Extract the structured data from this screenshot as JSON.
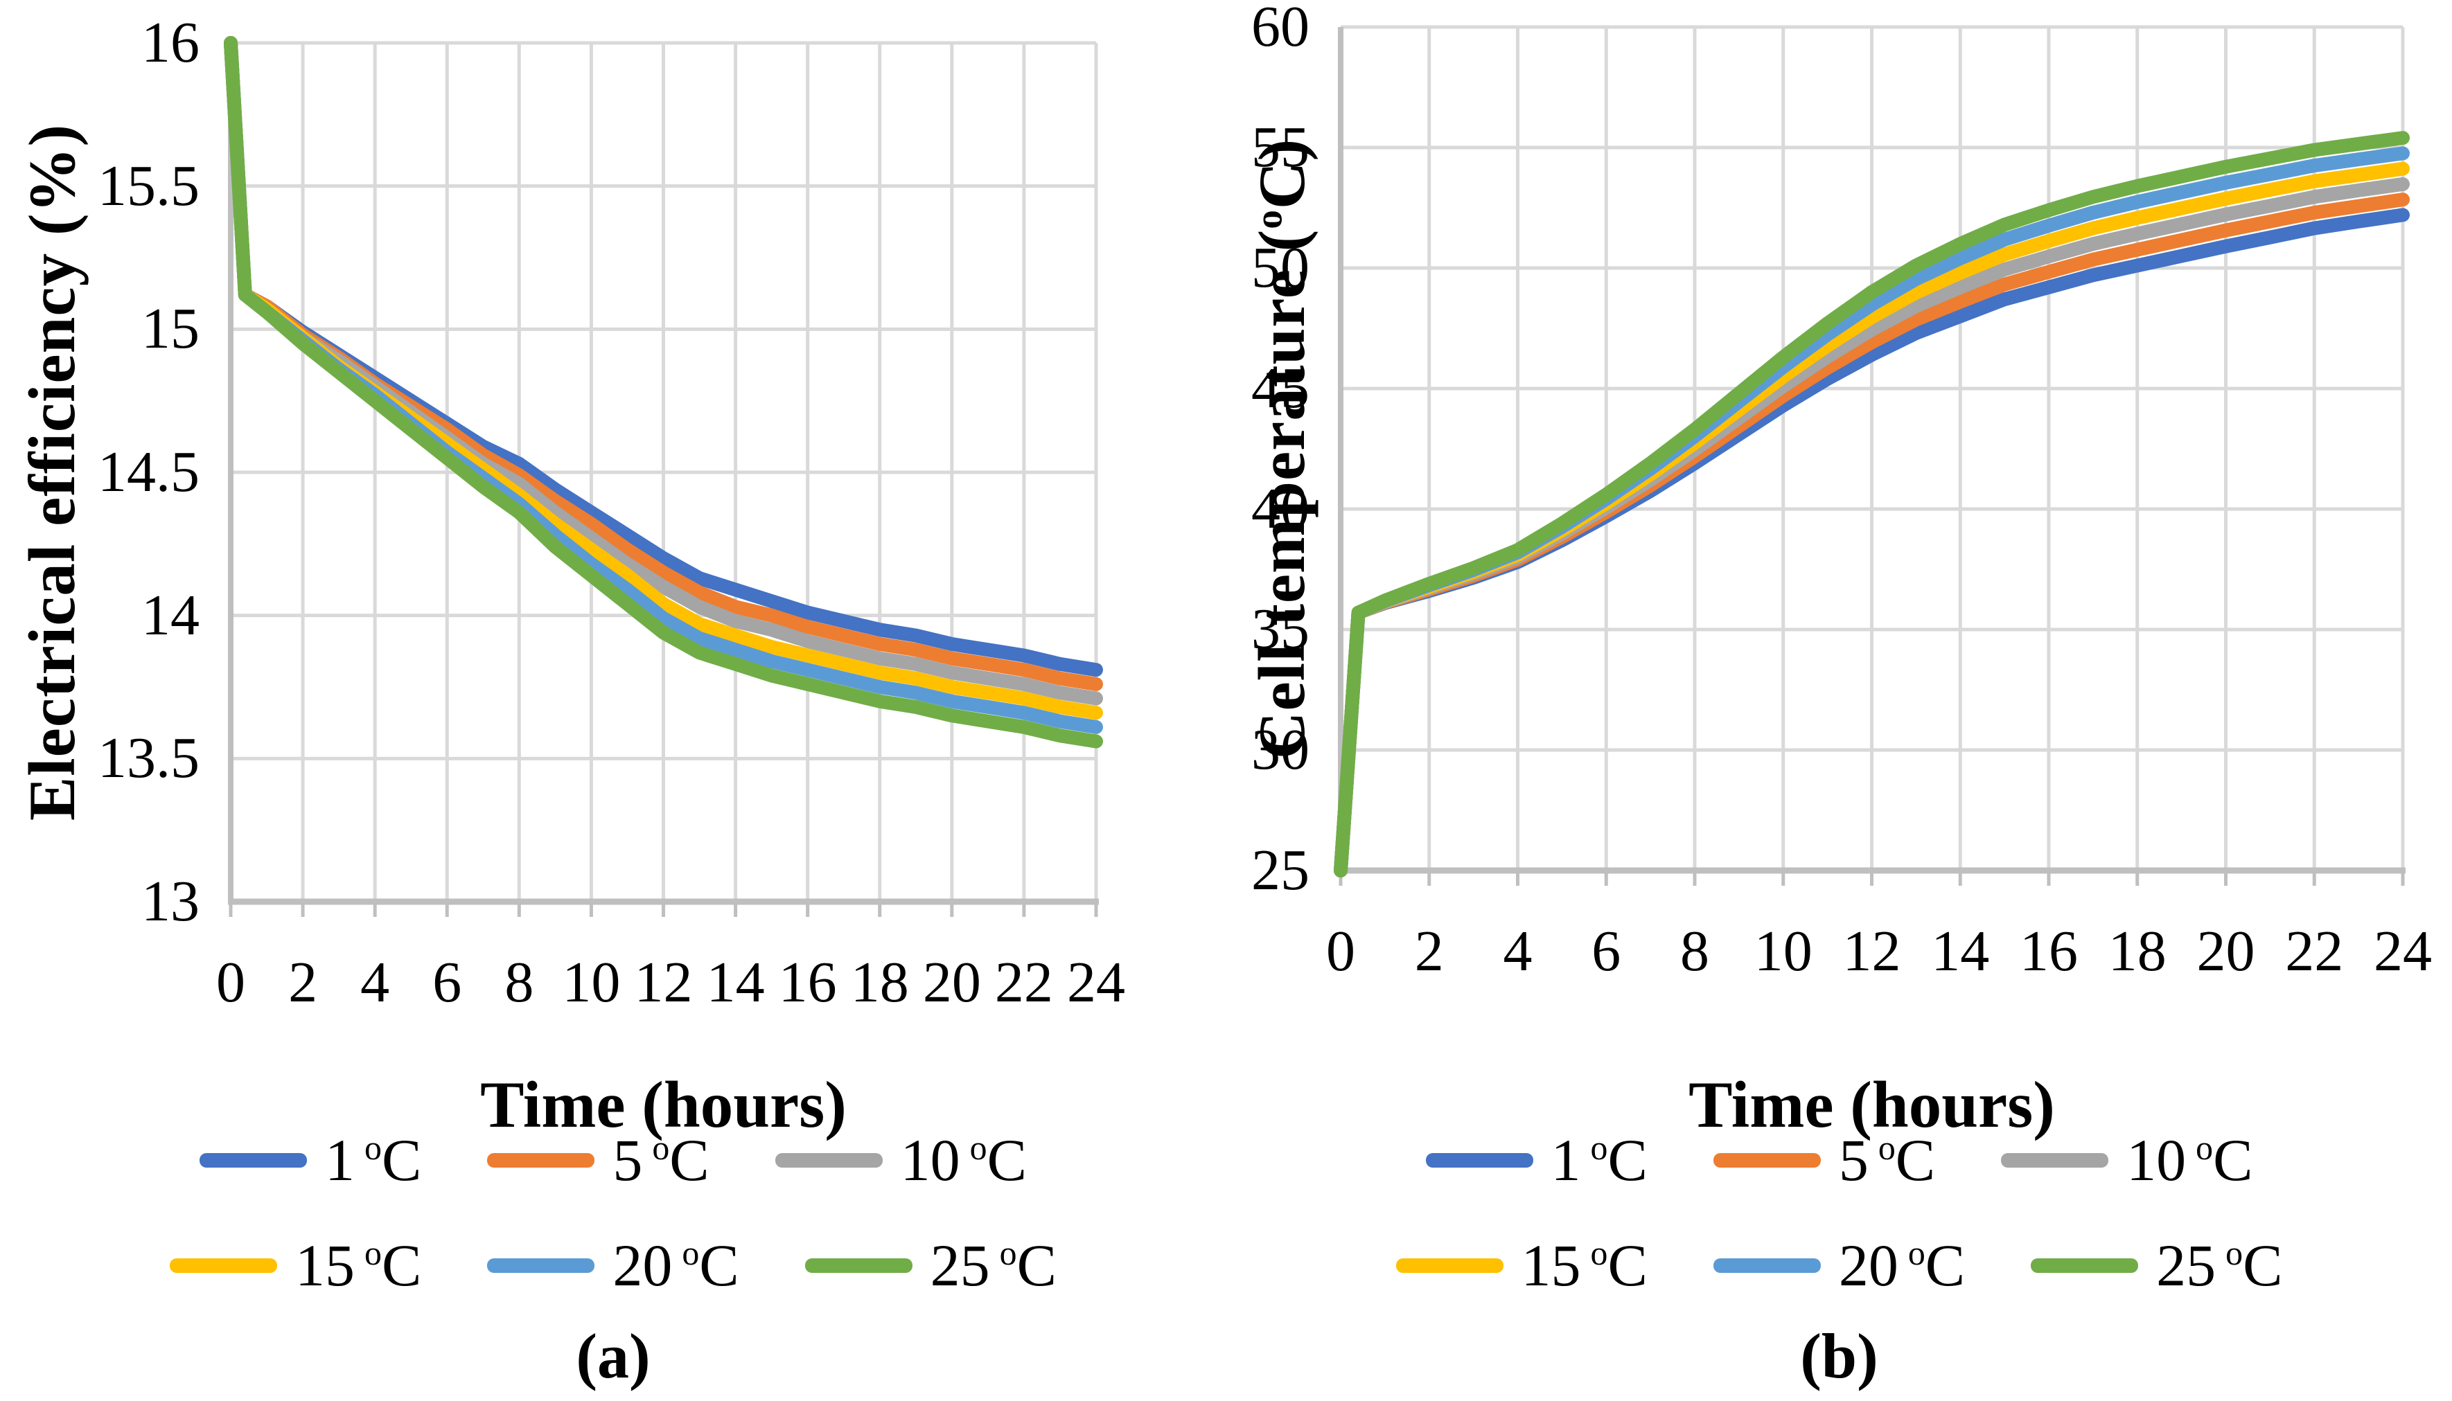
{
  "captions": {
    "a": "(a)",
    "b": "(b)"
  },
  "legend_deg": "o",
  "legend_unit": "C",
  "chart_data": [
    {
      "id": "a",
      "type": "line",
      "xlabel": "Time (hours)",
      "ylabel_prefix": "Electrical efficiency (%)",
      "ylabel_sup": "",
      "ylabel_suffix": "",
      "xlim": [
        0,
        24
      ],
      "ylim": [
        13,
        16
      ],
      "xtick_step": 2,
      "ytick_step": 0.5,
      "grid": true,
      "legend_position": "bottom",
      "grid_color": "#D9D9D9",
      "axis_color": "#BFBFBF",
      "x_ticks": [
        "0",
        "2",
        "4",
        "6",
        "8",
        "10",
        "12",
        "14",
        "16",
        "18",
        "20",
        "22",
        "24"
      ],
      "y_ticks": [
        "16",
        "15.5",
        "15",
        "14.5",
        "14",
        "13.5",
        "13"
      ],
      "x": [
        0,
        0.4,
        1,
        2,
        3,
        4,
        5,
        6,
        7,
        8,
        9,
        10,
        11,
        12,
        13,
        14,
        15,
        16,
        17,
        18,
        19,
        20,
        21,
        22,
        23,
        24
      ],
      "series": [
        {
          "label": "1",
          "color": "#4472C4",
          "values": [
            16,
            15.12,
            15.08,
            14.99,
            14.91,
            14.83,
            14.75,
            14.67,
            14.59,
            14.53,
            14.44,
            14.36,
            14.28,
            14.2,
            14.13,
            14.09,
            14.05,
            14.01,
            13.98,
            13.95,
            13.93,
            13.9,
            13.88,
            13.86,
            13.83,
            13.81
          ]
        },
        {
          "label": "5",
          "color": "#ED7D31",
          "values": [
            16,
            15.12,
            15.08,
            14.98,
            14.9,
            14.81,
            14.73,
            14.65,
            14.56,
            14.49,
            14.4,
            14.32,
            14.23,
            14.15,
            14.08,
            14.03,
            14.0,
            13.96,
            13.93,
            13.9,
            13.88,
            13.85,
            13.83,
            13.81,
            13.78,
            13.76
          ]
        },
        {
          "label": "10",
          "color": "#A5A5A5",
          "values": [
            16,
            15.12,
            15.07,
            14.97,
            14.89,
            14.8,
            14.71,
            14.62,
            14.53,
            14.46,
            14.36,
            14.27,
            14.18,
            14.1,
            14.03,
            13.98,
            13.95,
            13.91,
            13.88,
            13.85,
            13.83,
            13.8,
            13.78,
            13.76,
            13.73,
            13.71
          ]
        },
        {
          "label": "15",
          "color": "#FFC000",
          "values": [
            16,
            15.12,
            15.07,
            14.97,
            14.87,
            14.78,
            14.69,
            14.6,
            14.51,
            14.42,
            14.32,
            14.23,
            14.14,
            14.04,
            13.97,
            13.93,
            13.89,
            13.86,
            13.83,
            13.8,
            13.78,
            13.75,
            13.73,
            13.71,
            13.68,
            13.66
          ]
        },
        {
          "label": "20",
          "color": "#5B9BD5",
          "values": [
            16,
            15.12,
            15.06,
            14.96,
            14.86,
            14.77,
            14.67,
            14.57,
            14.48,
            14.39,
            14.28,
            14.18,
            14.09,
            13.99,
            13.92,
            13.88,
            13.84,
            13.81,
            13.78,
            13.75,
            13.73,
            13.7,
            13.68,
            13.66,
            13.63,
            13.61
          ]
        },
        {
          "label": "25",
          "color": "#70AD47",
          "values": [
            16,
            15.12,
            15.06,
            14.95,
            14.85,
            14.75,
            14.65,
            14.55,
            14.45,
            14.36,
            14.24,
            14.14,
            14.04,
            13.94,
            13.87,
            13.83,
            13.79,
            13.76,
            13.73,
            13.7,
            13.68,
            13.65,
            13.63,
            13.61,
            13.58,
            13.56
          ]
        }
      ]
    },
    {
      "id": "b",
      "type": "line",
      "xlabel": "Time (hours)",
      "ylabel_prefix": "Cell temperature (",
      "ylabel_sup": "o",
      "ylabel_suffix": "C)",
      "xlim": [
        0,
        24
      ],
      "ylim": [
        25,
        60
      ],
      "xtick_step": 2,
      "ytick_step": 5,
      "grid": true,
      "legend_position": "bottom",
      "grid_color": "#D9D9D9",
      "axis_color": "#BFBFBF",
      "x_ticks": [
        "0",
        "2",
        "4",
        "6",
        "8",
        "10",
        "12",
        "14",
        "16",
        "18",
        "20",
        "22",
        "24"
      ],
      "y_ticks": [
        "60",
        "55",
        "50",
        "45",
        "40",
        "35",
        "30",
        "25"
      ],
      "x": [
        0,
        0.4,
        1,
        2,
        3,
        4,
        5,
        6,
        7,
        8,
        9,
        10,
        11,
        12,
        13,
        14,
        15,
        16,
        17,
        18,
        19,
        20,
        21,
        22,
        23,
        24
      ],
      "series": [
        {
          "label": "1",
          "color": "#4472C4",
          "values": [
            25,
            35.7,
            36.1,
            36.6,
            37.15,
            37.8,
            38.7,
            39.7,
            40.75,
            41.9,
            43.1,
            44.3,
            45.4,
            46.4,
            47.3,
            48.0,
            48.7,
            49.2,
            49.7,
            50.1,
            50.5,
            50.9,
            51.27,
            51.65,
            51.93,
            52.2
          ]
        },
        {
          "label": "5",
          "color": "#ED7D31",
          "values": [
            25,
            35.7,
            36.12,
            36.66,
            37.23,
            37.9,
            38.84,
            39.88,
            40.98,
            42.18,
            43.44,
            44.7,
            45.86,
            46.92,
            47.86,
            48.6,
            49.32,
            49.84,
            50.35,
            50.76,
            51.16,
            51.56,
            51.93,
            52.3,
            52.57,
            52.84
          ]
        },
        {
          "label": "10",
          "color": "#A5A5A5",
          "values": [
            25,
            35.7,
            36.14,
            36.72,
            37.31,
            38.0,
            38.98,
            40.06,
            41.21,
            42.46,
            43.78,
            45.1,
            46.32,
            47.44,
            48.42,
            49.2,
            49.94,
            50.48,
            51.0,
            51.42,
            51.82,
            52.22,
            52.58,
            52.95,
            53.22,
            53.48
          ]
        },
        {
          "label": "15",
          "color": "#FFC000",
          "values": [
            25,
            35.7,
            36.16,
            36.78,
            37.39,
            38.1,
            39.12,
            40.24,
            41.44,
            42.74,
            44.12,
            45.5,
            46.78,
            47.96,
            48.98,
            49.8,
            50.56,
            51.12,
            51.65,
            52.08,
            52.48,
            52.88,
            53.24,
            53.6,
            53.86,
            54.12
          ]
        },
        {
          "label": "20",
          "color": "#5B9BD5",
          "values": [
            25,
            35.7,
            36.18,
            36.84,
            37.47,
            38.2,
            39.26,
            40.42,
            41.67,
            43.02,
            44.46,
            45.9,
            47.24,
            48.48,
            49.54,
            50.4,
            51.18,
            51.76,
            52.3,
            52.74,
            53.14,
            53.54,
            53.89,
            54.25,
            54.51,
            54.76
          ]
        },
        {
          "label": "25",
          "color": "#70AD47",
          "values": [
            25,
            35.7,
            36.2,
            36.9,
            37.55,
            38.3,
            39.4,
            40.6,
            41.9,
            43.3,
            44.8,
            46.3,
            47.7,
            49.0,
            50.1,
            51.0,
            51.8,
            52.4,
            52.95,
            53.4,
            53.8,
            54.2,
            54.55,
            54.9,
            55.15,
            55.4
          ]
        }
      ]
    }
  ]
}
